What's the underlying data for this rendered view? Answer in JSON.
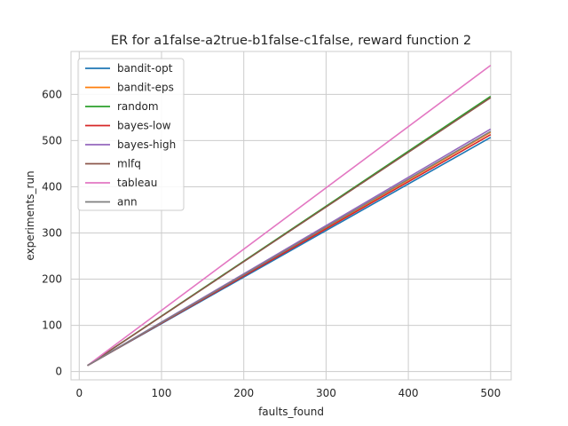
{
  "chart_data": {
    "type": "line",
    "title": "ER for a1false-a2true-b1false-c1false, reward function 2",
    "xlabel": "faults_found",
    "ylabel": "experiments_run",
    "xlim": [
      -10,
      525
    ],
    "ylim": [
      -18,
      693
    ],
    "xticks": [
      0,
      100,
      200,
      300,
      400,
      500
    ],
    "yticks": [
      0,
      100,
      200,
      300,
      400,
      500,
      600
    ],
    "grid": true,
    "legend_position": "top-left",
    "series": [
      {
        "name": "bandit-opt",
        "color": "#1f77b4",
        "x": [
          10,
          500
        ],
        "y": [
          13,
          507
        ]
      },
      {
        "name": "bandit-eps",
        "color": "#ff7f0e",
        "x": [
          10,
          500
        ],
        "y": [
          13,
          518
        ]
      },
      {
        "name": "random",
        "color": "#2ca02c",
        "x": [
          10,
          500
        ],
        "y": [
          13,
          596
        ]
      },
      {
        "name": "bayes-low",
        "color": "#d62728",
        "x": [
          10,
          500
        ],
        "y": [
          13,
          513
        ]
      },
      {
        "name": "bayes-high",
        "color": "#9467bd",
        "x": [
          10,
          500
        ],
        "y": [
          13,
          525
        ]
      },
      {
        "name": "mlfq",
        "color": "#8c564b",
        "x": [
          10,
          500
        ],
        "y": [
          13,
          593
        ]
      },
      {
        "name": "tableau",
        "color": "#e377c2",
        "x": [
          10,
          500
        ],
        "y": [
          13,
          663
        ]
      },
      {
        "name": "ann",
        "color": "#7f7f7f",
        "x": [
          10,
          500
        ],
        "y": [
          13,
          520
        ]
      }
    ]
  }
}
